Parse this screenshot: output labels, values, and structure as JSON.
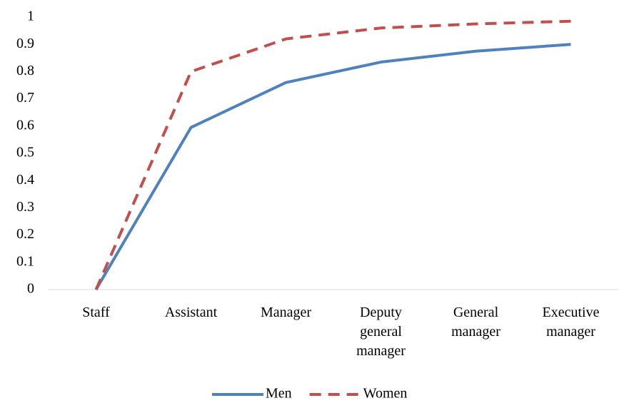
{
  "chart_data": {
    "type": "line",
    "categories": [
      "Staff",
      "Assistant",
      "Manager",
      "Deputy general manager",
      "General manager",
      "Executive manager"
    ],
    "series": [
      {
        "name": "Men",
        "color": "#4f81bd",
        "dash": false,
        "values": [
          0,
          0.595,
          0.76,
          0.835,
          0.875,
          0.9
        ]
      },
      {
        "name": "Women",
        "color": "#c0504d",
        "dash": true,
        "values": [
          0,
          0.8,
          0.92,
          0.96,
          0.975,
          0.985
        ]
      }
    ],
    "ylim": [
      0,
      1
    ],
    "yticks": [
      0,
      0.1,
      0.2,
      0.3,
      0.4,
      0.5,
      0.6,
      0.7,
      0.8,
      0.9,
      1
    ],
    "grid": false,
    "legend": "bottom"
  }
}
